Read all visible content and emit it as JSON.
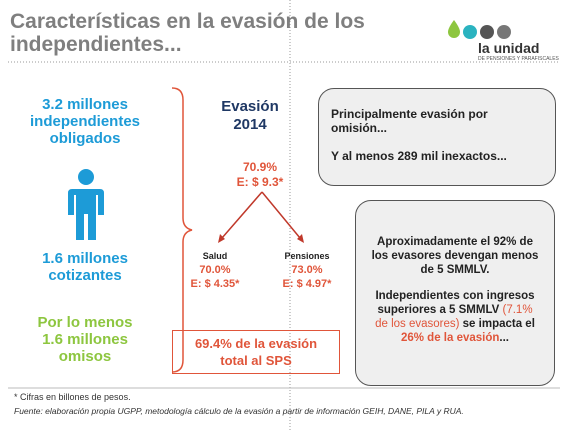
{
  "header": {
    "title": [
      "Características en la evasión de los",
      "independientes..."
    ],
    "logo": {
      "name": "la unidad",
      "tagline": "DE PENSIONES Y PARAFISCALES"
    }
  },
  "left": {
    "obligados": [
      "3.2 millones",
      "independientes",
      "obligados"
    ],
    "cotizantes": [
      "1.6 millones",
      "cotizantes"
    ],
    "omisos": [
      "Por lo menos",
      "1.6 millones",
      "omisos"
    ]
  },
  "center": {
    "heading": [
      "Evasión",
      "2014"
    ],
    "total": [
      "70.9%",
      "E: $ 9.3*"
    ],
    "salud": {
      "label": "Salud",
      "rate": "70.0%",
      "amount": "E: $ 4.35*"
    },
    "pensiones": {
      "label": "Pensiones",
      "rate": "73.0%",
      "amount": "E: $ 4.97*"
    },
    "sps": [
      "69.4% de la evasión",
      "total al SPS"
    ]
  },
  "right": {
    "box1": [
      "Principalmente evasión por omisión...",
      "Y al menos 289 mil inexactos..."
    ],
    "box2": {
      "p1": "Aproximadamente el 92% de los evasores devengan menos de 5 SMMLV.",
      "p2": [
        "Independientes con ingresos superiores a 5 SMMLV ",
        "(7.1% de los evasores)",
        " se impacta el ",
        "26% de la evasión",
        "..."
      ]
    }
  },
  "footer": {
    "note": "* Cifras en billones de pesos.",
    "source": "Fuente: elaboración propia UGPP, metodología cálculo de la evasión a partir de información GEIH, DANE, PILA y RUA."
  }
}
